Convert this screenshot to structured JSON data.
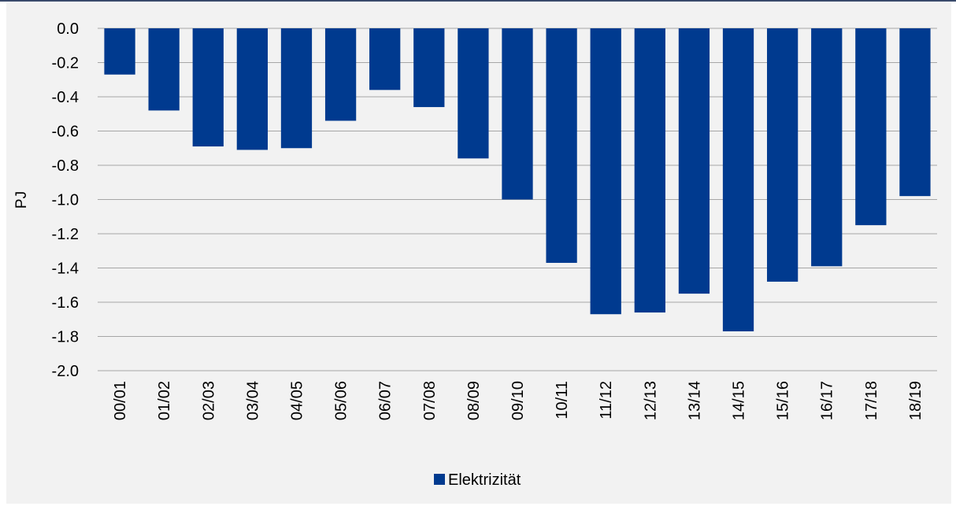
{
  "chart_data": {
    "type": "bar",
    "ylabel": "PJ",
    "xlabel": "",
    "ylim": [
      -2.0,
      0.0
    ],
    "y_ticks": [
      "0.0",
      "-0.2",
      "-0.4",
      "-0.6",
      "-0.8",
      "-1.0",
      "-1.2",
      "-1.4",
      "-1.6",
      "-1.8",
      "-2.0"
    ],
    "y_tick_values": [
      0.0,
      -0.2,
      -0.4,
      -0.6,
      -0.8,
      -1.0,
      -1.2,
      -1.4,
      -1.6,
      -1.8,
      -2.0
    ],
    "grid": true,
    "legend_position": "bottom",
    "categories": [
      "00/01",
      "01/02",
      "02/03",
      "03/04",
      "04/05",
      "05/06",
      "06/07",
      "07/08",
      "08/09",
      "09/10",
      "10/11",
      "11/12",
      "12/13",
      "13/14",
      "14/15",
      "15/16",
      "16/17",
      "17/18",
      "18/19"
    ],
    "series": [
      {
        "name": "Elektrizität",
        "color": "#003a8f",
        "values": [
          -0.27,
          -0.48,
          -0.69,
          -0.71,
          -0.7,
          -0.54,
          -0.36,
          -0.46,
          -0.76,
          -1.0,
          -1.37,
          -1.67,
          -1.66,
          -1.55,
          -1.77,
          -1.48,
          -1.39,
          -1.15,
          -0.98
        ]
      }
    ]
  }
}
